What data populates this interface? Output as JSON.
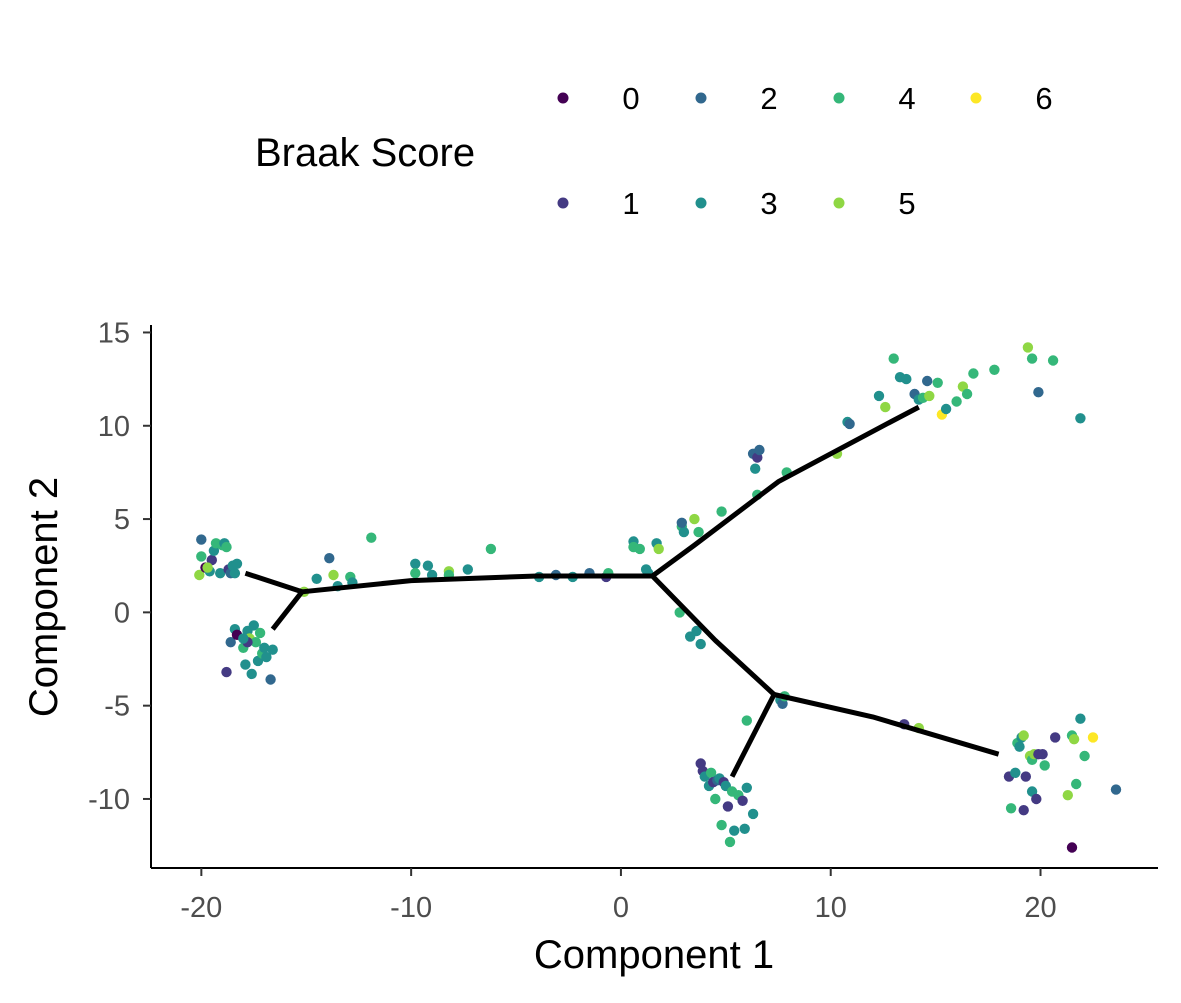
{
  "chart_data": {
    "type": "scatter",
    "title": "",
    "xlabel": "Component 1",
    "ylabel": "Component 2",
    "xlim": [
      -22.4,
      25.6
    ],
    "ylim": [
      -13.7,
      15.4
    ],
    "x_ticks": [
      -20,
      -10,
      0,
      10,
      20
    ],
    "y_ticks": [
      15,
      10,
      5,
      0,
      -5,
      -10
    ],
    "x_tick_labels": [
      "-20",
      "-10",
      "0",
      "10",
      "20"
    ],
    "y_tick_labels": [
      "15",
      "10",
      "5",
      "0",
      "-5",
      "-10"
    ],
    "grid": false,
    "legend": {
      "title": "Braak Score",
      "placement": "top",
      "entries": [
        {
          "label": "0",
          "color": "#440154"
        },
        {
          "label": "1",
          "color": "#443a83"
        },
        {
          "label": "2",
          "color": "#31688e"
        },
        {
          "label": "3",
          "color": "#21908d"
        },
        {
          "label": "4",
          "color": "#35b779"
        },
        {
          "label": "5",
          "color": "#8fd744"
        },
        {
          "label": "6",
          "color": "#fde725"
        }
      ]
    },
    "trajectory": [
      [
        [
          -15.2,
          1.1
        ],
        [
          -10.0,
          1.7
        ],
        [
          -4.0,
          1.95
        ],
        [
          1.5,
          1.95
        ]
      ],
      [
        [
          -15.2,
          1.1
        ],
        [
          -17.9,
          2.1
        ]
      ],
      [
        [
          -15.2,
          1.1
        ],
        [
          -16.6,
          -0.9
        ]
      ],
      [
        [
          1.5,
          1.95
        ],
        [
          3.5,
          3.6
        ],
        [
          7.5,
          7.0
        ],
        [
          12.5,
          10.0
        ],
        [
          14.2,
          11.0
        ]
      ],
      [
        [
          1.5,
          1.95
        ],
        [
          4.5,
          -1.5
        ],
        [
          7.3,
          -4.4
        ]
      ],
      [
        [
          7.3,
          -4.4
        ],
        [
          5.3,
          -8.8
        ]
      ],
      [
        [
          7.3,
          -4.4
        ],
        [
          12.0,
          -5.6
        ],
        [
          18.0,
          -7.6
        ]
      ]
    ],
    "points": [
      {
        "x": -20.0,
        "y": 3.9,
        "s": 2
      },
      {
        "x": -20.0,
        "y": 3.0,
        "s": 4
      },
      {
        "x": -20.1,
        "y": 2.0,
        "s": 5
      },
      {
        "x": -19.8,
        "y": 2.4,
        "s": 0
      },
      {
        "x": -19.6,
        "y": 2.2,
        "s": 3
      },
      {
        "x": -19.5,
        "y": 2.8,
        "s": 1
      },
      {
        "x": -19.4,
        "y": 3.3,
        "s": 3
      },
      {
        "x": -19.3,
        "y": 3.7,
        "s": 4
      },
      {
        "x": -19.1,
        "y": 2.1,
        "s": 3
      },
      {
        "x": -19.0,
        "y": 3.6,
        "s": 4
      },
      {
        "x": -18.9,
        "y": 3.7,
        "s": 3
      },
      {
        "x": -18.8,
        "y": 3.5,
        "s": 4
      },
      {
        "x": -18.7,
        "y": 2.3,
        "s": 1
      },
      {
        "x": -18.6,
        "y": 2.1,
        "s": 2
      },
      {
        "x": -18.5,
        "y": 2.5,
        "s": 3
      },
      {
        "x": -18.4,
        "y": 2.1,
        "s": 3
      },
      {
        "x": -18.3,
        "y": 2.6,
        "s": 3
      },
      {
        "x": -19.7,
        "y": 2.4,
        "s": 5
      },
      {
        "x": -18.8,
        "y": -3.2,
        "s": 1
      },
      {
        "x": -18.6,
        "y": -1.6,
        "s": 2
      },
      {
        "x": -18.4,
        "y": -0.9,
        "s": 3
      },
      {
        "x": -18.3,
        "y": -1.2,
        "s": 0
      },
      {
        "x": -18.0,
        "y": -1.9,
        "s": 4
      },
      {
        "x": -17.9,
        "y": -2.8,
        "s": 3
      },
      {
        "x": -17.8,
        "y": -1.0,
        "s": 3
      },
      {
        "x": -17.7,
        "y": -1.4,
        "s": 5
      },
      {
        "x": -17.6,
        "y": -3.3,
        "s": 3
      },
      {
        "x": -17.5,
        "y": -0.7,
        "s": 3
      },
      {
        "x": -17.4,
        "y": -1.6,
        "s": 4
      },
      {
        "x": -17.3,
        "y": -2.6,
        "s": 3
      },
      {
        "x": -17.2,
        "y": -1.1,
        "s": 4
      },
      {
        "x": -17.1,
        "y": -2.2,
        "s": 4
      },
      {
        "x": -17.0,
        "y": -1.9,
        "s": 3
      },
      {
        "x": -16.9,
        "y": -2.4,
        "s": 3
      },
      {
        "x": -16.6,
        "y": -2.0,
        "s": 3
      },
      {
        "x": -16.7,
        "y": -3.6,
        "s": 2
      },
      {
        "x": -17.8,
        "y": -1.6,
        "s": 1
      },
      {
        "x": -18.0,
        "y": -1.4,
        "s": 3
      },
      {
        "x": -15.1,
        "y": 1.1,
        "s": 5
      },
      {
        "x": -14.5,
        "y": 1.8,
        "s": 3
      },
      {
        "x": -13.9,
        "y": 2.9,
        "s": 2
      },
      {
        "x": -13.7,
        "y": 2.0,
        "s": 5
      },
      {
        "x": -13.5,
        "y": 1.4,
        "s": 3
      },
      {
        "x": -12.9,
        "y": 1.9,
        "s": 4
      },
      {
        "x": -12.8,
        "y": 1.6,
        "s": 3
      },
      {
        "x": -11.9,
        "y": 4.0,
        "s": 4
      },
      {
        "x": -9.8,
        "y": 2.6,
        "s": 3
      },
      {
        "x": -9.8,
        "y": 2.1,
        "s": 4
      },
      {
        "x": -9.2,
        "y": 2.5,
        "s": 3
      },
      {
        "x": -9.0,
        "y": 2.0,
        "s": 3
      },
      {
        "x": -8.2,
        "y": 2.2,
        "s": 5
      },
      {
        "x": -8.2,
        "y": 2.0,
        "s": 4
      },
      {
        "x": -7.3,
        "y": 2.3,
        "s": 3
      },
      {
        "x": -6.2,
        "y": 3.4,
        "s": 4
      },
      {
        "x": -3.9,
        "y": 1.9,
        "s": 3
      },
      {
        "x": -3.1,
        "y": 2.0,
        "s": 2
      },
      {
        "x": -2.3,
        "y": 1.9,
        "s": 3
      },
      {
        "x": -1.5,
        "y": 2.1,
        "s": 2
      },
      {
        "x": -0.7,
        "y": 1.9,
        "s": 1
      },
      {
        "x": -0.6,
        "y": 2.1,
        "s": 4
      },
      {
        "x": 0.6,
        "y": 3.8,
        "s": 3
      },
      {
        "x": 0.6,
        "y": 3.5,
        "s": 4
      },
      {
        "x": 0.9,
        "y": 3.4,
        "s": 4
      },
      {
        "x": 1.2,
        "y": 2.3,
        "s": 3
      },
      {
        "x": 1.3,
        "y": 2.1,
        "s": 3
      },
      {
        "x": 1.7,
        "y": 3.7,
        "s": 3
      },
      {
        "x": 1.8,
        "y": 3.4,
        "s": 5
      },
      {
        "x": 2.9,
        "y": 4.6,
        "s": 4
      },
      {
        "x": 3.0,
        "y": 4.3,
        "s": 3
      },
      {
        "x": 2.9,
        "y": 4.8,
        "s": 2
      },
      {
        "x": 3.5,
        "y": 5.0,
        "s": 5
      },
      {
        "x": 3.7,
        "y": 4.3,
        "s": 4
      },
      {
        "x": 4.8,
        "y": 5.4,
        "s": 4
      },
      {
        "x": 6.3,
        "y": 8.5,
        "s": 2
      },
      {
        "x": 6.4,
        "y": 7.7,
        "s": 3
      },
      {
        "x": 6.5,
        "y": 8.3,
        "s": 1
      },
      {
        "x": 6.6,
        "y": 8.7,
        "s": 2
      },
      {
        "x": 6.5,
        "y": 6.3,
        "s": 4
      },
      {
        "x": 7.9,
        "y": 7.5,
        "s": 4
      },
      {
        "x": 10.3,
        "y": 8.5,
        "s": 5
      },
      {
        "x": 10.8,
        "y": 10.2,
        "s": 3
      },
      {
        "x": 10.9,
        "y": 10.1,
        "s": 2
      },
      {
        "x": 12.3,
        "y": 11.6,
        "s": 3
      },
      {
        "x": 12.6,
        "y": 11.0,
        "s": 5
      },
      {
        "x": 13.0,
        "y": 13.6,
        "s": 4
      },
      {
        "x": 13.3,
        "y": 12.6,
        "s": 3
      },
      {
        "x": 13.6,
        "y": 12.5,
        "s": 3
      },
      {
        "x": 14.0,
        "y": 11.7,
        "s": 2
      },
      {
        "x": 14.2,
        "y": 11.4,
        "s": 3
      },
      {
        "x": 14.4,
        "y": 11.5,
        "s": 4
      },
      {
        "x": 14.6,
        "y": 12.4,
        "s": 2
      },
      {
        "x": 14.7,
        "y": 11.6,
        "s": 5
      },
      {
        "x": 15.1,
        "y": 12.3,
        "s": 4
      },
      {
        "x": 15.3,
        "y": 10.6,
        "s": 6
      },
      {
        "x": 15.5,
        "y": 10.9,
        "s": 3
      },
      {
        "x": 16.0,
        "y": 11.3,
        "s": 4
      },
      {
        "x": 16.3,
        "y": 12.1,
        "s": 5
      },
      {
        "x": 16.5,
        "y": 11.7,
        "s": 4
      },
      {
        "x": 16.8,
        "y": 12.8,
        "s": 4
      },
      {
        "x": 17.8,
        "y": 13.0,
        "s": 4
      },
      {
        "x": 19.4,
        "y": 14.2,
        "s": 5
      },
      {
        "x": 19.6,
        "y": 13.6,
        "s": 4
      },
      {
        "x": 19.9,
        "y": 11.8,
        "s": 2
      },
      {
        "x": 20.6,
        "y": 13.5,
        "s": 4
      },
      {
        "x": 21.9,
        "y": 10.4,
        "s": 3
      },
      {
        "x": 2.8,
        "y": 0.0,
        "s": 4
      },
      {
        "x": 3.3,
        "y": -1.3,
        "s": 3
      },
      {
        "x": 3.6,
        "y": -1.0,
        "s": 3
      },
      {
        "x": 3.8,
        "y": -1.7,
        "s": 3
      },
      {
        "x": 7.6,
        "y": -4.7,
        "s": 3
      },
      {
        "x": 7.7,
        "y": -4.9,
        "s": 2
      },
      {
        "x": 7.8,
        "y": -4.5,
        "s": 4
      },
      {
        "x": 6.0,
        "y": -5.8,
        "s": 4
      },
      {
        "x": 3.8,
        "y": -8.1,
        "s": 1
      },
      {
        "x": 3.9,
        "y": -8.5,
        "s": 1
      },
      {
        "x": 4.0,
        "y": -8.8,
        "s": 3
      },
      {
        "x": 4.2,
        "y": -9.3,
        "s": 3
      },
      {
        "x": 4.3,
        "y": -8.6,
        "s": 4
      },
      {
        "x": 4.4,
        "y": -9.1,
        "s": 1
      },
      {
        "x": 4.5,
        "y": -10.0,
        "s": 4
      },
      {
        "x": 4.6,
        "y": -9.0,
        "s": 2
      },
      {
        "x": 4.7,
        "y": -8.9,
        "s": 3
      },
      {
        "x": 4.8,
        "y": -11.4,
        "s": 4
      },
      {
        "x": 4.9,
        "y": -9.1,
        "s": 1
      },
      {
        "x": 5.0,
        "y": -9.3,
        "s": 3
      },
      {
        "x": 5.1,
        "y": -10.4,
        "s": 1
      },
      {
        "x": 5.2,
        "y": -12.3,
        "s": 4
      },
      {
        "x": 5.3,
        "y": -9.6,
        "s": 4
      },
      {
        "x": 5.4,
        "y": -11.7,
        "s": 3
      },
      {
        "x": 5.6,
        "y": -9.8,
        "s": 4
      },
      {
        "x": 5.8,
        "y": -10.1,
        "s": 1
      },
      {
        "x": 5.9,
        "y": -11.6,
        "s": 3
      },
      {
        "x": 6.0,
        "y": -9.4,
        "s": 3
      },
      {
        "x": 6.3,
        "y": -10.8,
        "s": 3
      },
      {
        "x": 13.5,
        "y": -6.0,
        "s": 1
      },
      {
        "x": 14.2,
        "y": -6.2,
        "s": 5
      },
      {
        "x": 18.5,
        "y": -8.8,
        "s": 1
      },
      {
        "x": 18.6,
        "y": -10.5,
        "s": 4
      },
      {
        "x": 18.8,
        "y": -8.6,
        "s": 3
      },
      {
        "x": 18.9,
        "y": -7.0,
        "s": 4
      },
      {
        "x": 19.0,
        "y": -7.2,
        "s": 3
      },
      {
        "x": 19.1,
        "y": -6.7,
        "s": 3
      },
      {
        "x": 19.2,
        "y": -6.6,
        "s": 5
      },
      {
        "x": 19.2,
        "y": -10.6,
        "s": 1
      },
      {
        "x": 19.3,
        "y": -8.8,
        "s": 1
      },
      {
        "x": 19.5,
        "y": -7.7,
        "s": 5
      },
      {
        "x": 19.6,
        "y": -7.9,
        "s": 4
      },
      {
        "x": 19.7,
        "y": -7.6,
        "s": 5
      },
      {
        "x": 19.6,
        "y": -9.6,
        "s": 3
      },
      {
        "x": 19.8,
        "y": -10.0,
        "s": 1
      },
      {
        "x": 19.9,
        "y": -7.6,
        "s": 1
      },
      {
        "x": 20.1,
        "y": -7.6,
        "s": 1
      },
      {
        "x": 20.2,
        "y": -8.2,
        "s": 4
      },
      {
        "x": 20.7,
        "y": -6.7,
        "s": 1
      },
      {
        "x": 21.3,
        "y": -9.8,
        "s": 5
      },
      {
        "x": 21.5,
        "y": -6.6,
        "s": 4
      },
      {
        "x": 21.6,
        "y": -6.8,
        "s": 5
      },
      {
        "x": 21.5,
        "y": -12.6,
        "s": 0
      },
      {
        "x": 21.7,
        "y": -9.2,
        "s": 4
      },
      {
        "x": 21.9,
        "y": -5.7,
        "s": 3
      },
      {
        "x": 22.1,
        "y": -7.7,
        "s": 4
      },
      {
        "x": 22.5,
        "y": -6.7,
        "s": 6
      },
      {
        "x": 23.6,
        "y": -9.5,
        "s": 2
      }
    ]
  }
}
